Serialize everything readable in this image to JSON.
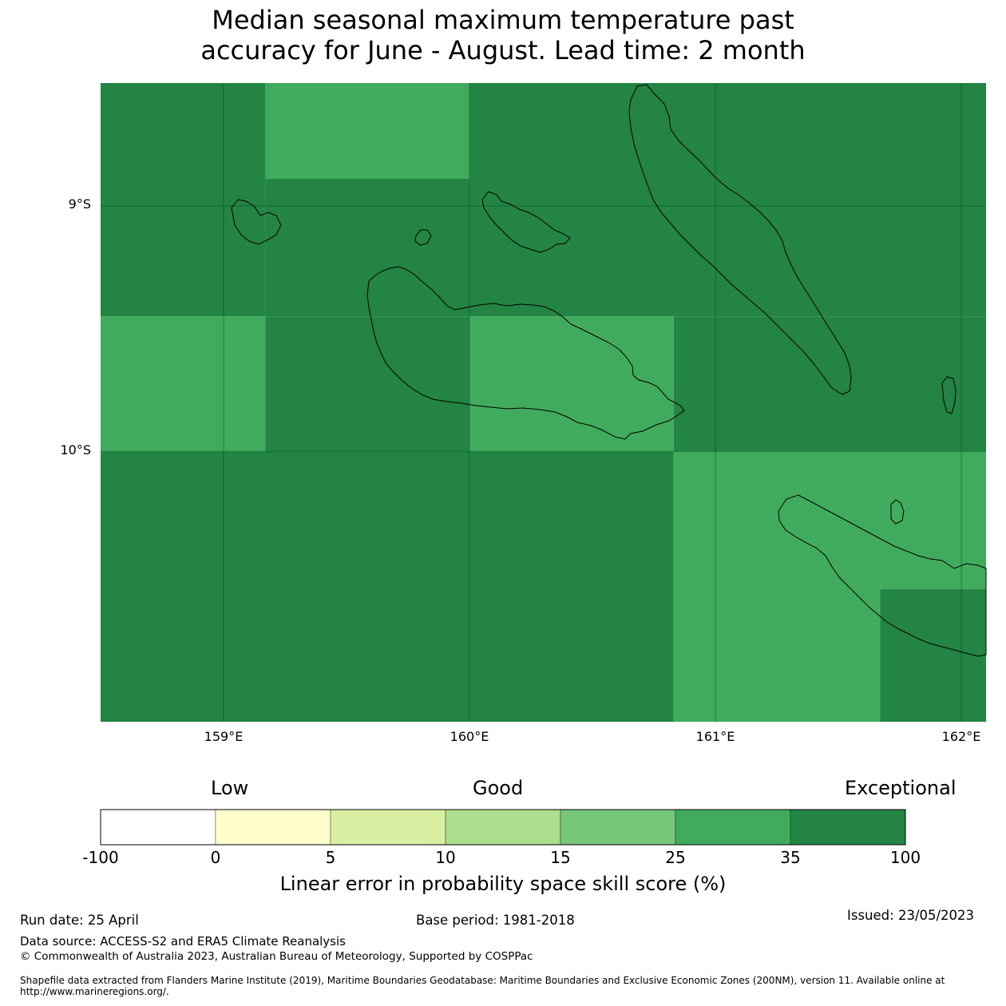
{
  "title": "Median seasonal maximum temperature past\naccuracy for June - August. Lead time: 2 month",
  "map": {
    "lon_range": [
      158.5,
      162.1
    ],
    "lat_range": [
      -11.1,
      -8.5
    ],
    "grid_lons": [
      159,
      160,
      161,
      162
    ],
    "grid_lats": [
      -9,
      -10
    ],
    "x_tick_labels": [
      "159°E",
      "160°E",
      "161°E",
      "162°E"
    ],
    "y_tick_labels": [
      "9°S",
      "10°S"
    ],
    "skill_cells": [
      {
        "lon": [
          158.5,
          159.17
        ],
        "lat": [
          -8.5,
          -9.45
        ],
        "category": "35-100"
      },
      {
        "lon": [
          159.17,
          160.0
        ],
        "lat": [
          -8.5,
          -8.89
        ],
        "category": "25-35"
      },
      {
        "lon": [
          159.17,
          160.0
        ],
        "lat": [
          -8.89,
          -9.45
        ],
        "category": "35-100"
      },
      {
        "lon": [
          160.0,
          162.1
        ],
        "lat": [
          -8.5,
          -9.45
        ],
        "category": "35-100"
      },
      {
        "lon": [
          158.5,
          159.17
        ],
        "lat": [
          -9.45,
          -10.0
        ],
        "category": "25-35"
      },
      {
        "lon": [
          159.17,
          160.0
        ],
        "lat": [
          -9.45,
          -10.0
        ],
        "category": "35-100"
      },
      {
        "lon": [
          160.0,
          160.83
        ],
        "lat": [
          -9.45,
          -10.0
        ],
        "category": "25-35"
      },
      {
        "lon": [
          160.83,
          162.1
        ],
        "lat": [
          -9.45,
          -10.0
        ],
        "category": "35-100"
      },
      {
        "lon": [
          158.5,
          160.83
        ],
        "lat": [
          -10.0,
          -11.1
        ],
        "category": "35-100"
      },
      {
        "lon": [
          160.83,
          161.67
        ],
        "lat": [
          -10.0,
          -11.1
        ],
        "category": "25-35"
      },
      {
        "lon": [
          161.67,
          162.1
        ],
        "lat": [
          -10.0,
          -10.56
        ],
        "category": "25-35"
      },
      {
        "lon": [
          161.67,
          162.1
        ],
        "lat": [
          -10.56,
          -11.1
        ],
        "category": "35-100"
      }
    ]
  },
  "colorbar": {
    "category_labels": {
      "low": "Low",
      "good": "Good",
      "exceptional": "Exceptional"
    },
    "bins": [
      {
        "from": "-100",
        "to": "0",
        "color": "#ffffff"
      },
      {
        "from": "0",
        "to": "5",
        "color": "#ffffcc"
      },
      {
        "from": "5",
        "to": "10",
        "color": "#d9f0a3"
      },
      {
        "from": "10",
        "to": "15",
        "color": "#addd8e"
      },
      {
        "from": "15",
        "to": "25",
        "color": "#78c679"
      },
      {
        "from": "25",
        "to": "35",
        "color": "#41ab5d"
      },
      {
        "from": "35",
        "to": "100",
        "color": "#238443"
      }
    ],
    "tick_labels": [
      "-100",
      "0",
      "5",
      "10",
      "15",
      "25",
      "35",
      "100"
    ],
    "label": "Linear error in probability space skill score (%)"
  },
  "footer": {
    "run_date": "Run date: 25 April",
    "base_period": "Base period: 1981-2018",
    "issued": "Issued: 23/05/2023",
    "data_source": "Data source: ACCESS-S2 and ERA5 Climate Reanalysis",
    "copyright": "© Commonwealth of Australia 2023, Australian Bureau of Meteorology, Supported by COSPPac",
    "shapefile_note": "Shapefile data extracted from Flanders Marine Institute (2019), Maritime Boundaries Geodatabase: Maritime Boundaries and Exclusive Economic Zones (200NM), version 11. Available online at http://www.marineregions.org/."
  }
}
